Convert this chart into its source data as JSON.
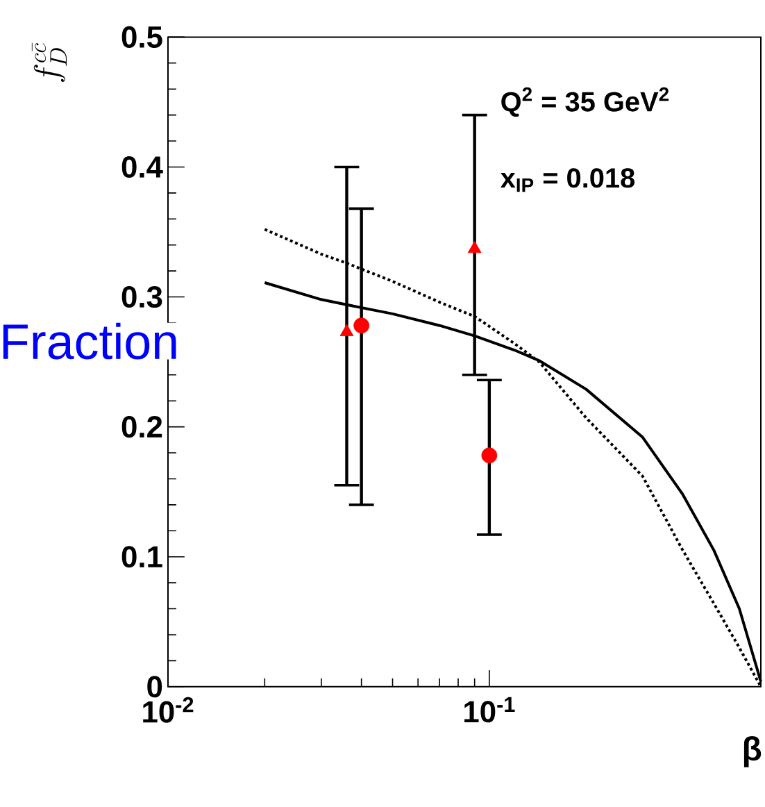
{
  "chart_data": {
    "type": "scatter",
    "xlabel": "β",
    "ylabel": "f_D^{c\\bar{c}}",
    "xlim": [
      0.01,
      0.7
    ],
    "ylim": [
      0,
      0.5
    ],
    "log": "x",
    "xticks": [
      {
        "value": 0.01,
        "label": "10$^{-2}$"
      },
      {
        "value": 0.1,
        "label": "10$^{-1}$"
      }
    ],
    "yticks": [
      0,
      0.1,
      0.2,
      0.3,
      0.4,
      0.5
    ],
    "annotations": [
      "Q$^{2}$ = 35 GeV$^{2}$",
      "x$_{IP}$ = 0.018",
      "Fraction"
    ],
    "series": [
      {
        "marker": "triangle",
        "color": "#ff0000",
        "x": [
          0.036,
          0.09
        ],
        "values": [
          0.273,
          0.337
        ],
        "errors": [
          [
            0.155,
            0.4
          ],
          [
            0.24,
            0.44
          ]
        ]
      },
      {
        "marker": "circle",
        "color": "#ff0000",
        "x": [
          0.04,
          0.1
        ],
        "values": [
          0.278,
          0.178
        ],
        "errors": [
          [
            0.14,
            0.368
          ],
          [
            0.117,
            0.236
          ]
        ]
      },
      {
        "type": "line",
        "line_style": "solid",
        "color": "#000000",
        "x": [
          0.02,
          0.03,
          0.036,
          0.05,
          0.07,
          0.09,
          0.12,
          0.143,
          0.2,
          0.3,
          0.4,
          0.5,
          0.6,
          0.7
        ],
        "values": [
          0.311,
          0.298,
          0.294,
          0.287,
          0.278,
          0.27,
          0.259,
          0.251,
          0.229,
          0.192,
          0.148,
          0.105,
          0.06,
          0.004
        ]
      },
      {
        "type": "line",
        "line_style": "dotted",
        "color": "#000000",
        "x": [
          0.02,
          0.03,
          0.036,
          0.05,
          0.07,
          0.09,
          0.12,
          0.143,
          0.2,
          0.3,
          0.4,
          0.5,
          0.6,
          0.7
        ],
        "values": [
          0.352,
          0.333,
          0.326,
          0.312,
          0.296,
          0.285,
          0.264,
          0.25,
          0.207,
          0.162,
          0.105,
          0.064,
          0.03,
          0.0
        ]
      }
    ]
  }
}
